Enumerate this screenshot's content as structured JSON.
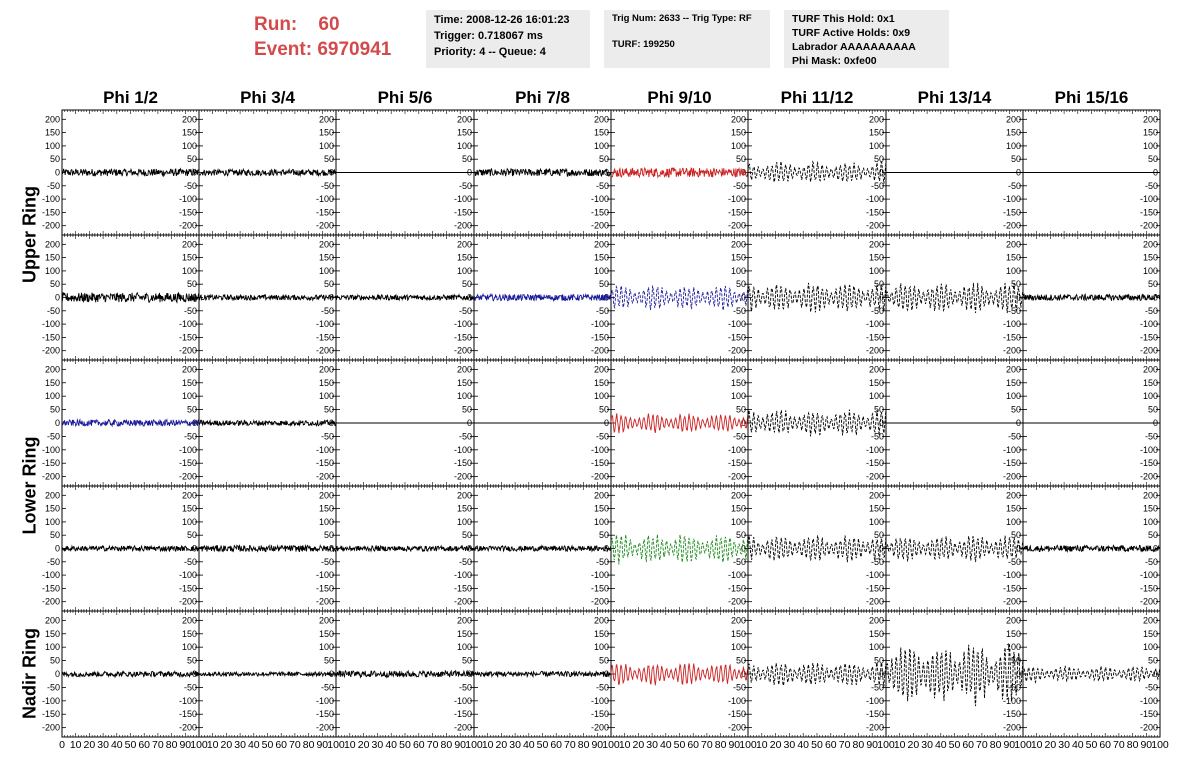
{
  "header": {
    "run_label": "Run:",
    "run_value": "60",
    "event_label": "Event:",
    "event_value": "6970941",
    "box1": [
      "Time: 2008-12-26 16:01:23",
      "Trigger: 0.718067 ms",
      "Priority: 4 -- Queue: 4"
    ],
    "box2": [
      "Trig Num: 2633 -- Trig Type: RF",
      "TURF: 199250"
    ],
    "box3": [
      "TURF This Hold: 0x1",
      "TURF Active Holds: 0x9",
      "Labrador AAAAAAAAAA",
      "Phi Mask: 0xfe00"
    ],
    "colors": {
      "run": "#d44a4a",
      "box_bg": "#ececec"
    }
  },
  "chart_data": {
    "type": "line",
    "columns": [
      "Phi 1/2",
      "Phi 3/4",
      "Phi 5/6",
      "Phi 7/8",
      "Phi 9/10",
      "Phi 11/12",
      "Phi 13/14",
      "Phi 15/16"
    ],
    "row_groups": [
      {
        "label": "Upper Ring",
        "rows": [
          0,
          1
        ]
      },
      {
        "label": "Lower Ring",
        "rows": [
          2,
          3
        ]
      },
      {
        "label": "Nadir Ring",
        "rows": [
          4
        ]
      }
    ],
    "y_ticks": [
      "200",
      "150",
      "100",
      "50",
      "0",
      "-50",
      "-100",
      "-150",
      "-200"
    ],
    "ylim": [
      -220,
      220
    ],
    "xlim": [
      0,
      100
    ],
    "x_tick_labels": [
      "0",
      "10",
      "20",
      "30",
      "40",
      "50",
      "60",
      "70",
      "80",
      "90",
      "100"
    ],
    "grid": false,
    "series_colors": {
      "black": "#000000",
      "red": "#cc2222",
      "blue": "#1a1a9a",
      "green": "#1a8a1a"
    },
    "traces": [
      [
        {
          "kind": "noise",
          "amp": 14,
          "color": "black"
        },
        {
          "kind": "noise",
          "amp": 12,
          "color": "black"
        },
        {
          "kind": "flat",
          "color": "black"
        },
        {
          "kind": "noise",
          "amp": 14,
          "color": "black"
        },
        {
          "kind": "noise",
          "amp": 18,
          "color": "red"
        },
        {
          "kind": "pulse",
          "amp": 40,
          "color": "black",
          "dashed": true
        },
        {
          "kind": "flat",
          "color": "black"
        },
        {
          "kind": "flat",
          "color": "black"
        }
      ],
      [
        {
          "kind": "noise",
          "amp": 18,
          "color": "black"
        },
        {
          "kind": "noise",
          "amp": 10,
          "color": "black"
        },
        {
          "kind": "noise",
          "amp": 10,
          "color": "black"
        },
        {
          "kind": "noise",
          "amp": 12,
          "color": "blue"
        },
        {
          "kind": "pulse",
          "amp": 45,
          "color": "blue",
          "dashed": true
        },
        {
          "kind": "pulse",
          "amp": 55,
          "color": "black",
          "dashed": true
        },
        {
          "kind": "pulse",
          "amp": 55,
          "color": "black",
          "dashed": true
        },
        {
          "kind": "noise",
          "amp": 12,
          "color": "black"
        }
      ],
      [
        {
          "kind": "noise",
          "amp": 12,
          "color": "blue"
        },
        {
          "kind": "noise",
          "amp": 10,
          "color": "black"
        },
        {
          "kind": "flat",
          "color": "black"
        },
        {
          "kind": "flat",
          "color": "black"
        },
        {
          "kind": "pulse",
          "amp": 35,
          "color": "red"
        },
        {
          "kind": "pulse",
          "amp": 50,
          "color": "black",
          "dashed": true
        },
        {
          "kind": "flat",
          "color": "black"
        },
        {
          "kind": "flat",
          "color": "black"
        }
      ],
      [
        {
          "kind": "noise",
          "amp": 10,
          "color": "black"
        },
        {
          "kind": "noise",
          "amp": 12,
          "color": "black"
        },
        {
          "kind": "noise",
          "amp": 10,
          "color": "black"
        },
        {
          "kind": "noise",
          "amp": 10,
          "color": "black"
        },
        {
          "kind": "pulse",
          "amp": 55,
          "color": "green",
          "dashed": true
        },
        {
          "kind": "pulse",
          "amp": 50,
          "color": "black",
          "dashed": true
        },
        {
          "kind": "pulse",
          "amp": 48,
          "color": "black",
          "dashed": true
        },
        {
          "kind": "noise",
          "amp": 12,
          "color": "black"
        }
      ],
      [
        {
          "kind": "noise",
          "amp": 10,
          "color": "black"
        },
        {
          "kind": "noise",
          "amp": 8,
          "color": "black"
        },
        {
          "kind": "noise",
          "amp": 12,
          "color": "black"
        },
        {
          "kind": "noise",
          "amp": 10,
          "color": "black"
        },
        {
          "kind": "pulse",
          "amp": 40,
          "color": "red"
        },
        {
          "kind": "pulse",
          "amp": 45,
          "color": "black",
          "dashed": true
        },
        {
          "kind": "pulse",
          "amp": 110,
          "color": "black",
          "dashed": true
        },
        {
          "kind": "pulse",
          "amp": 30,
          "color": "black",
          "dashed": true
        }
      ]
    ]
  }
}
